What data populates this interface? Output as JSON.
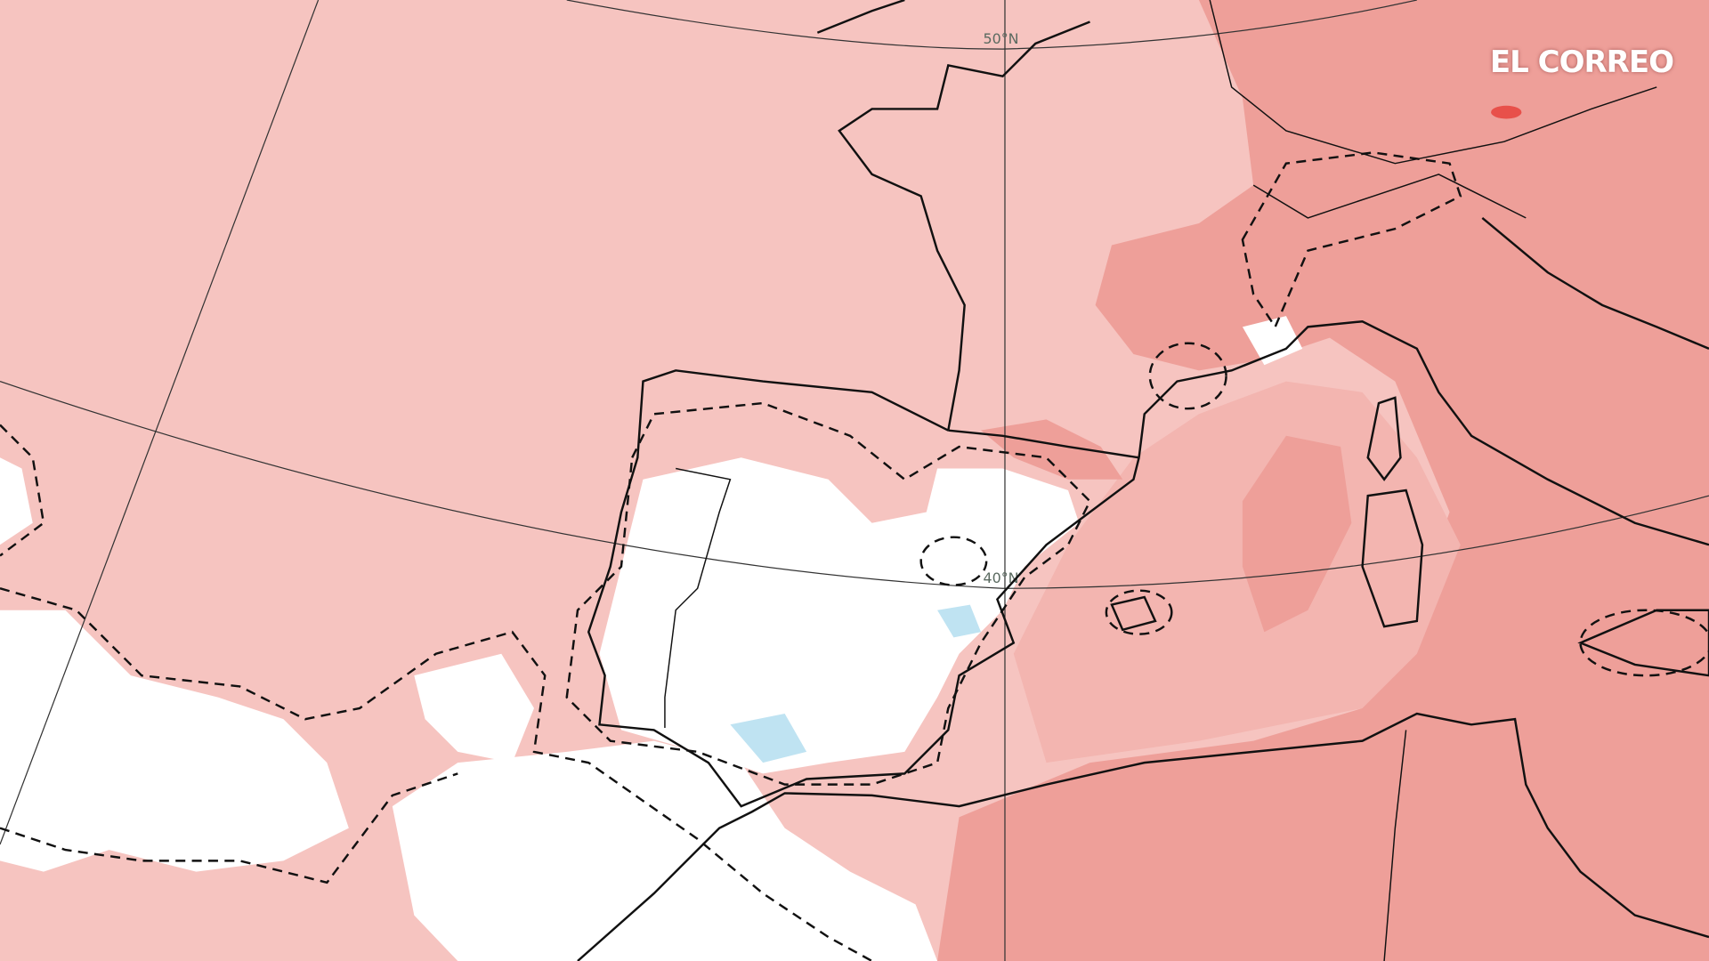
{
  "brand": "EL CORREO",
  "graticule": {
    "lat_50": "50°N",
    "lat_40": "40°N"
  },
  "colors": {
    "background_anomaly": "#f6c4c0",
    "strong_anomaly": "#ee9f99",
    "neutral": "#ffffff",
    "cool_anomaly": "#bfe3f2",
    "hotspot": "#e8504a",
    "coastline": "#111111"
  }
}
